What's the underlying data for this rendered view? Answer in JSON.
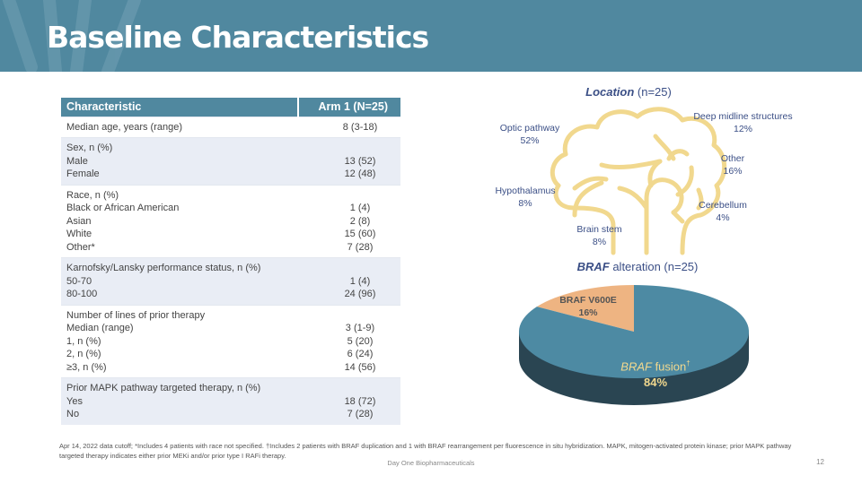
{
  "header": {
    "title": "Baseline Characteristics"
  },
  "table": {
    "headers": [
      "Characteristic",
      "Arm 1 (N=25)"
    ],
    "rows": [
      {
        "labels": [
          "Median age, years (range)"
        ],
        "values": [
          "8 (3-18)"
        ]
      },
      {
        "labels": [
          "Sex, n (%)",
          "Male",
          "Female"
        ],
        "values": [
          "",
          "13 (52)",
          "12 (48)"
        ]
      },
      {
        "labels": [
          "Race, n (%)",
          "Black or African American",
          "Asian",
          "White",
          "Other*"
        ],
        "values": [
          "",
          "1 (4)",
          "2 (8)",
          "15 (60)",
          "7 (28)"
        ]
      },
      {
        "labels": [
          "Karnofsky/Lansky performance status, n (%)",
          "50-70",
          "80-100"
        ],
        "values": [
          "",
          "1 (4)",
          "24 (96)"
        ]
      },
      {
        "labels": [
          "Number of lines of prior therapy",
          "Median (range)",
          "1, n (%)",
          "2, n (%)",
          "≥3, n (%)"
        ],
        "values": [
          "",
          "3 (1-9)",
          "5 (20)",
          "6 (24)",
          "14 (56)"
        ]
      },
      {
        "labels": [
          "Prior MAPK pathway targeted therapy, n (%)",
          "Yes",
          "No"
        ],
        "values": [
          "",
          "18 (72)",
          "7 (28)"
        ]
      }
    ]
  },
  "location": {
    "title_italic": "Location",
    "title_rest": " (n=25)",
    "items": [
      {
        "name": "Optic pathway",
        "pct": "52%"
      },
      {
        "name": "Deep midline structures",
        "pct": "12%"
      },
      {
        "name": "Other",
        "pct": "16%"
      },
      {
        "name": "Hypothalamus",
        "pct": "8%"
      },
      {
        "name": "Cerebellum",
        "pct": "4%"
      },
      {
        "name": "Brain stem",
        "pct": "8%"
      }
    ]
  },
  "chart_data": {
    "type": "pie",
    "title_italic": "BRAF",
    "title_rest": " alteration (n=25)",
    "slices": [
      {
        "label": "BRAF V600E",
        "value": 16,
        "display": "16%",
        "color": "#eeb482"
      },
      {
        "label_italic": "BRAF",
        "label_rest": " fusion",
        "sup": "†",
        "value": 84,
        "display": "84%",
        "color": "#4d8aa3"
      }
    ],
    "three_d": true
  },
  "footer": {
    "note": "Apr 14, 2022 data cutoff; *Includes 4 patients with race not specified. †Includes 2 patients with BRAF duplication and 1 with BRAF rearrangement per fluorescence in situ hybridization. MAPK, mitogen-activated protein kinase; prior MAPK pathway targeted therapy indicates either prior MEKi and/or prior type I RAFi therapy.",
    "company": "Day One Biopharmaceuticals",
    "page": "12"
  }
}
